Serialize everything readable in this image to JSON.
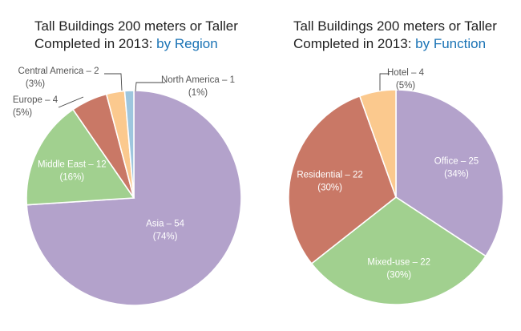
{
  "colors": {
    "title": "#222222",
    "accent": "#1a73b5",
    "label_outside": "#555555",
    "label_inside": "#ffffff",
    "leader": "#444444",
    "slice_border": "#ffffff"
  },
  "chart_data": [
    {
      "type": "pie",
      "title": {
        "line1": "Tall Buildings 200 meters or Taller",
        "line2_prefix": "Completed in 2013: ",
        "line2_accent": "by Region"
      },
      "start_angle_deg": 0,
      "slices": [
        {
          "label": "Asia",
          "value": 54,
          "display": "Asia – 54",
          "percent": "(74%)",
          "color": "#b3a2cb",
          "label_pos": "inside"
        },
        {
          "label": "Middle East",
          "value": 12,
          "display": "Middle East – 12",
          "percent": "(16%)",
          "color": "#a1d08f",
          "label_pos": "inside"
        },
        {
          "label": "Europe",
          "value": 4,
          "display": "Europe – 4",
          "percent": "(5%)",
          "color": "#c97866",
          "label_pos": "outside-left"
        },
        {
          "label": "Central America",
          "value": 2,
          "display": "Central America – 2",
          "percent": "(3%)",
          "color": "#fbc98e",
          "label_pos": "outside-top"
        },
        {
          "label": "North America",
          "value": 1,
          "display": "North America – 1",
          "percent": "(1%)",
          "color": "#9ec6de",
          "label_pos": "outside-right"
        }
      ]
    },
    {
      "type": "pie",
      "title": {
        "line1": "Tall Buildings 200 meters or Taller",
        "line2_prefix": "Completed in 2013: ",
        "line2_accent": "by Function"
      },
      "start_angle_deg": 0,
      "slices": [
        {
          "label": "Office",
          "value": 25,
          "display": "Office – 25",
          "percent": "(34%)",
          "color": "#b3a2cb",
          "label_pos": "inside"
        },
        {
          "label": "Mixed-use",
          "value": 22,
          "display": "Mixed-use – 22",
          "percent": "(30%)",
          "color": "#a1d08f",
          "label_pos": "inside"
        },
        {
          "label": "Residential",
          "value": 22,
          "display": "Residential – 22",
          "percent": "(30%)",
          "color": "#c97866",
          "label_pos": "inside"
        },
        {
          "label": "Hotel",
          "value": 4,
          "display": "Hotel – 4",
          "percent": "(5%)",
          "color": "#fbc98e",
          "label_pos": "outside-top"
        }
      ]
    }
  ]
}
